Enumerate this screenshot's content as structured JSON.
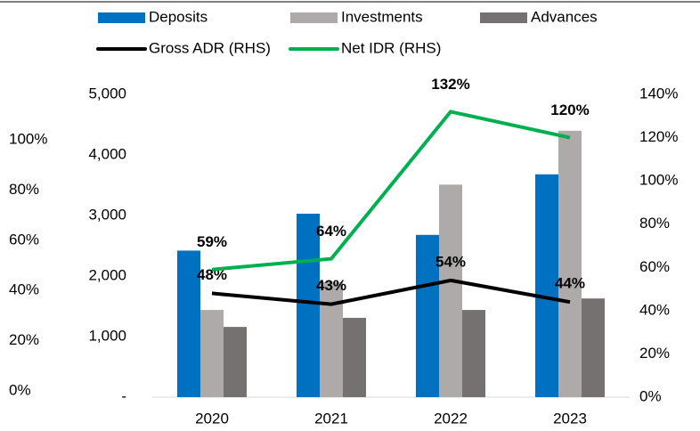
{
  "chart_data": {
    "type": "bar-line",
    "categories": [
      "2020",
      "2021",
      "2022",
      "2023"
    ],
    "series": [
      {
        "name": "Deposits",
        "type": "bar",
        "color": "#0070c0",
        "values": [
          2420,
          3030,
          2680,
          3680
        ]
      },
      {
        "name": "Investments",
        "type": "bar",
        "color": "#aeaaaa",
        "values": [
          1440,
          1900,
          3510,
          4400
        ]
      },
      {
        "name": "Advances",
        "type": "bar",
        "color": "#767171",
        "values": [
          1160,
          1310,
          1440,
          1630
        ]
      },
      {
        "name": "Gross ADR (RHS)",
        "type": "line",
        "axis": "y2",
        "color": "#000000",
        "values": [
          48,
          43,
          54,
          44
        ],
        "value_labels": [
          "48%",
          "43%",
          "54%",
          "44%"
        ]
      },
      {
        "name": "Net IDR (RHS)",
        "type": "line",
        "axis": "y2",
        "color": "#00b050",
        "values": [
          59,
          64,
          132,
          120
        ],
        "value_labels": [
          "59%",
          "64%",
          "132%",
          "120%"
        ]
      }
    ],
    "ylim": [
      0,
      5000
    ],
    "yticks": [
      {
        "value": 0,
        "label": "-"
      },
      {
        "value": 1000,
        "label": "1,000"
      },
      {
        "value": 2000,
        "label": "2,000"
      },
      {
        "value": 3000,
        "label": "3,000"
      },
      {
        "value": 4000,
        "label": "4,000"
      },
      {
        "value": 5000,
        "label": "5,000"
      }
    ],
    "y2lim": [
      0,
      140
    ],
    "y2ticks": [
      {
        "value": 0,
        "label": "0%"
      },
      {
        "value": 20,
        "label": "20%"
      },
      {
        "value": 40,
        "label": "40%"
      },
      {
        "value": 60,
        "label": "60%"
      },
      {
        "value": 80,
        "label": "80%"
      },
      {
        "value": 100,
        "label": "100%"
      },
      {
        "value": 120,
        "label": "120%"
      },
      {
        "value": 140,
        "label": "140%"
      }
    ],
    "y3lim": [
      0,
      100
    ],
    "y3ticks": [
      {
        "value": 0,
        "label": "0%"
      },
      {
        "value": 20,
        "label": "20%"
      },
      {
        "value": 40,
        "label": "40%"
      },
      {
        "value": 60,
        "label": "60%"
      },
      {
        "value": 80,
        "label": "80%"
      },
      {
        "value": 100,
        "label": "100%"
      }
    ],
    "grid": false
  }
}
